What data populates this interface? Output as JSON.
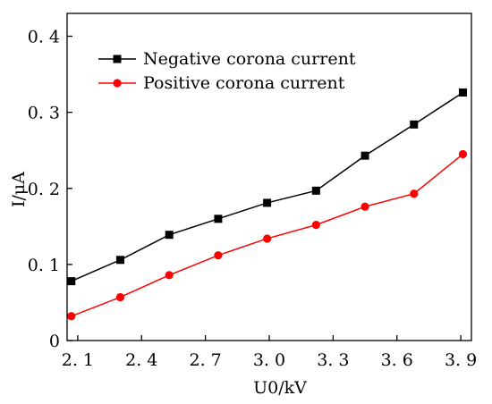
{
  "chart_data": {
    "type": "line",
    "xlabel": "U0/kV",
    "ylabel": "I/μA",
    "xlim": [
      2.05,
      3.95
    ],
    "ylim": [
      0,
      0.43
    ],
    "x_ticks": [
      2.1,
      2.4,
      2.7,
      3.0,
      3.3,
      3.6,
      3.9
    ],
    "x_tick_labels": [
      "2. 1",
      "2. 4",
      "2. 7",
      "3. 0",
      "3. 3",
      "3. 6",
      "3. 9"
    ],
    "y_ticks": [
      0,
      0.1,
      0.2,
      0.3,
      0.4
    ],
    "y_tick_labels": [
      "0",
      "0. 1",
      "0. 2",
      "0. 3",
      "0. 4"
    ],
    "legend_position": "top-left",
    "grid": false,
    "x": [
      2.07,
      2.3,
      2.53,
      2.76,
      2.99,
      3.22,
      3.45,
      3.68,
      3.91
    ],
    "series": [
      {
        "name": "Negative corona current",
        "color": "#000000",
        "marker": "square",
        "values": [
          0.078,
          0.106,
          0.139,
          0.16,
          0.181,
          0.197,
          0.243,
          0.284,
          0.326
        ]
      },
      {
        "name": "Positive corona current",
        "color": "#ff0000",
        "marker": "circle",
        "values": [
          0.032,
          0.057,
          0.086,
          0.112,
          0.134,
          0.152,
          0.176,
          0.193,
          0.245
        ]
      }
    ]
  }
}
